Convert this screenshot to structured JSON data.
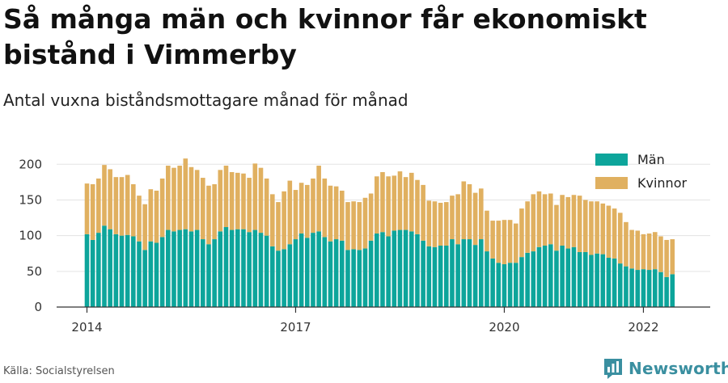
{
  "title": "Så många män och kvinnor får ekonomiskt bistånd i Vimmerby",
  "subtitle": "Antal vuxna biståndsmottagare månad för månad",
  "source": "Källa: Socialstyrelsen",
  "brand": {
    "name": "Newsworthy",
    "icon": "newsworthy-logo-icon"
  },
  "colors": {
    "men": "#0da59b",
    "women": "#e0b060",
    "axis": "#333333",
    "grid": "#e3e3e3"
  },
  "chart_data": {
    "type": "bar",
    "stacked": true,
    "x_start": "2014-01",
    "x_ticks": [
      "2014",
      "2017",
      "2020",
      "2022"
    ],
    "y_ticks": [
      0,
      50,
      100,
      150,
      200
    ],
    "ylim": [
      0,
      215
    ],
    "grid": true,
    "legend_position": "top-right",
    "series": [
      {
        "name": "Män",
        "color": "#0da59b",
        "values": [
          102,
          94,
          104,
          114,
          109,
          102,
          100,
          101,
          99,
          92,
          80,
          92,
          90,
          98,
          108,
          106,
          108,
          109,
          106,
          108,
          95,
          88,
          95,
          106,
          112,
          108,
          109,
          109,
          105,
          108,
          104,
          100,
          85,
          79,
          81,
          88,
          95,
          103,
          97,
          104,
          106,
          98,
          92,
          95,
          93,
          80,
          81,
          80,
          82,
          93,
          103,
          105,
          99,
          107,
          108,
          108,
          106,
          102,
          93,
          85,
          84,
          86,
          86,
          95,
          88,
          95,
          95,
          87,
          95,
          78,
          68,
          62,
          60,
          62,
          62,
          70,
          76,
          78,
          84,
          86,
          88,
          79,
          86,
          82,
          84,
          77,
          77,
          73,
          75,
          74,
          69,
          68,
          61,
          57,
          54,
          52,
          53,
          52,
          53,
          49,
          42,
          46
        ]
      },
      {
        "name": "Kvinnor",
        "color": "#e0b060",
        "values": [
          71,
          78,
          76,
          85,
          84,
          80,
          82,
          84,
          73,
          64,
          64,
          73,
          73,
          82,
          90,
          89,
          90,
          99,
          90,
          84,
          86,
          82,
          77,
          86,
          86,
          81,
          79,
          78,
          76,
          93,
          91,
          80,
          73,
          68,
          81,
          89,
          69,
          71,
          74,
          76,
          92,
          82,
          78,
          74,
          70,
          67,
          67,
          67,
          71,
          66,
          80,
          84,
          84,
          77,
          82,
          74,
          82,
          76,
          78,
          64,
          64,
          60,
          61,
          61,
          70,
          81,
          77,
          73,
          71,
          57,
          53,
          59,
          62,
          60,
          55,
          68,
          72,
          80,
          78,
          72,
          71,
          64,
          71,
          72,
          73,
          79,
          73,
          75,
          73,
          71,
          73,
          70,
          71,
          62,
          54,
          55,
          49,
          51,
          52,
          50,
          52,
          49
        ]
      }
    ]
  }
}
